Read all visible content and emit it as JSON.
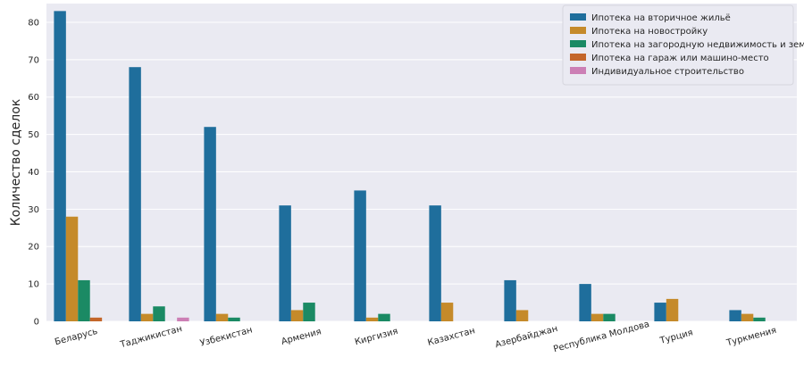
{
  "chart_data": {
    "type": "bar",
    "title": "",
    "xlabel": "",
    "ylabel": "Количество сделок",
    "ylim": [
      0,
      85
    ],
    "yticks": [
      0,
      10,
      20,
      30,
      40,
      50,
      60,
      70,
      80
    ],
    "grid": true,
    "legend_position": "top-right",
    "categories": [
      "Беларусь",
      "Таджикистан",
      "Узбекистан",
      "Армения",
      "Киргизия",
      "Казахстан",
      "Азербайджан",
      "Республика Молдова",
      "Турция",
      "Туркмения"
    ],
    "series": [
      {
        "name": "Ипотека на вторичное жильё",
        "color": "#1f6e9c",
        "values": [
          83,
          68,
          52,
          31,
          35,
          31,
          11,
          10,
          5,
          3
        ]
      },
      {
        "name": "Ипотека на новостройку",
        "color": "#c58a2a",
        "values": [
          28,
          2,
          2,
          3,
          1,
          5,
          3,
          2,
          6,
          2
        ]
      },
      {
        "name": "Ипотека на загородную недвижимость и землю",
        "color": "#1b8a64",
        "values": [
          11,
          4,
          1,
          5,
          2,
          0,
          0,
          2,
          0,
          1
        ]
      },
      {
        "name": "Ипотека на гараж или машино-место",
        "color": "#c4662a",
        "values": [
          1,
          0,
          0,
          0,
          0,
          0,
          0,
          0,
          0,
          0
        ]
      },
      {
        "name": "Индивидуальное строительство",
        "color": "#cc7fb5",
        "values": [
          0,
          1,
          0,
          0,
          0,
          0,
          0,
          0,
          0,
          0
        ]
      }
    ]
  }
}
